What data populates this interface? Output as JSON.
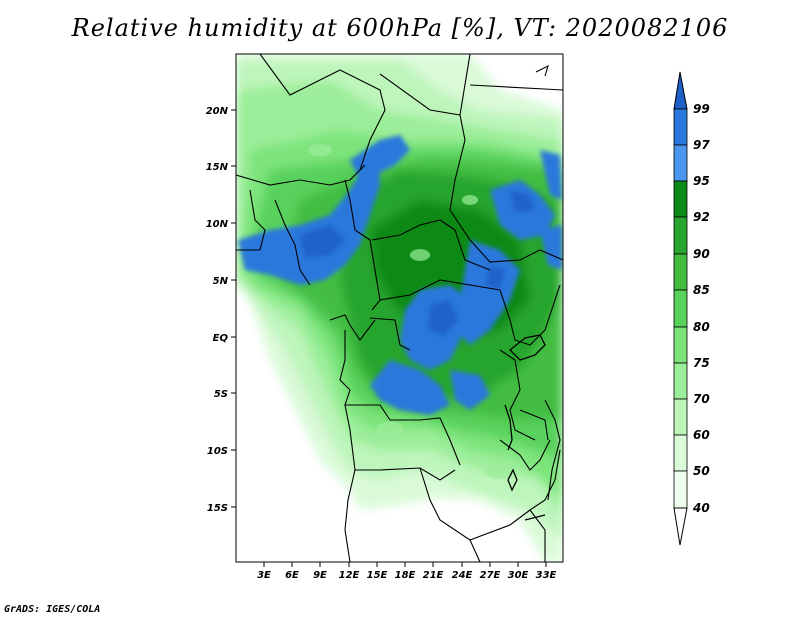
{
  "title": "Relative humidity at 600hPa [%], VT: 2020082106",
  "credit": "GrADS: IGES/COLA",
  "map": {
    "lat_labels": [
      "20N",
      "15N",
      "10N",
      "5N",
      "EQ",
      "5S",
      "10S",
      "15S"
    ],
    "lon_labels": [
      "3E",
      "6E",
      "9E",
      "12E",
      "15E",
      "18E",
      "21E",
      "24E",
      "27E",
      "30E",
      "33E"
    ]
  },
  "colorbar": {
    "levels": [
      "99",
      "97",
      "95",
      "92",
      "90",
      "85",
      "80",
      "75",
      "70",
      "60",
      "50",
      "40"
    ],
    "colors": [
      "#1f5fc8",
      "#2a78dc",
      "#4b97ee",
      "#0d8a17",
      "#27a52e",
      "#42bd42",
      "#59d25c",
      "#7de47c",
      "#9cee9a",
      "#bdf5bb",
      "#dafad8",
      "#f0fef0"
    ]
  }
}
